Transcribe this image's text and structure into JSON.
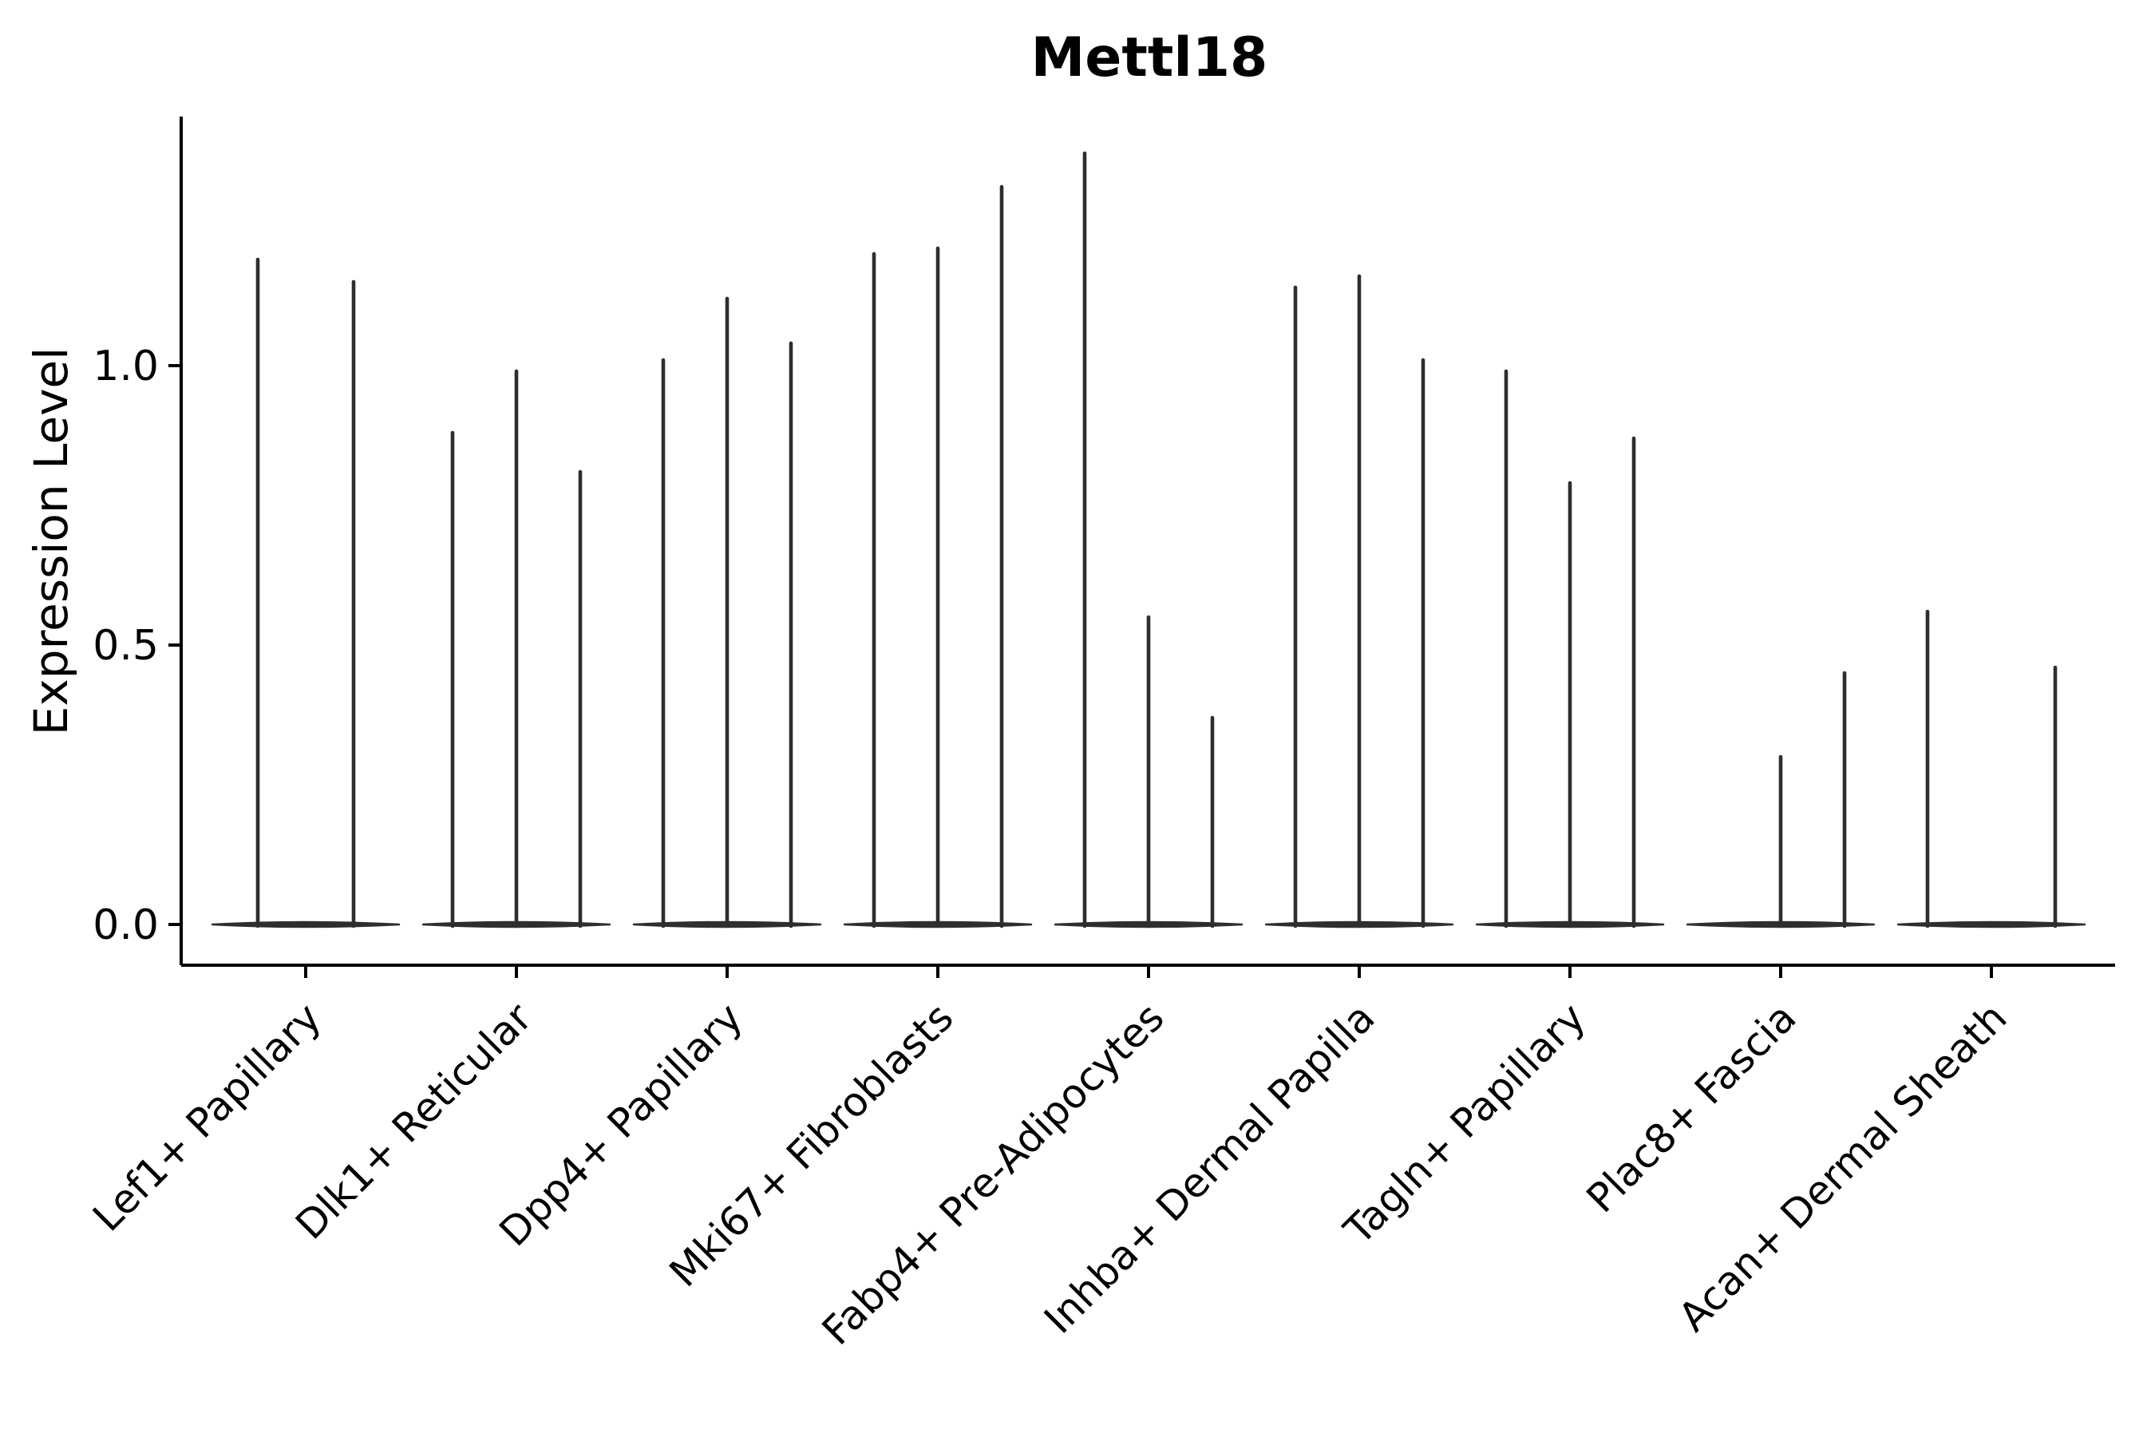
{
  "figure": {
    "title": "Mettl18",
    "background_color": "#ffffff",
    "ink_color": "#000000",
    "violin_color": "#2e2e2e"
  },
  "chart_data": {
    "type": "violin",
    "title": "Mettl18",
    "xlabel": "",
    "ylabel": "Expression Level",
    "ylim": [
      -0.07,
      1.45
    ],
    "ytick_labels": [
      "0.0",
      "0.5",
      "1.0"
    ],
    "ytick_values": [
      0.0,
      0.5,
      1.0
    ],
    "grid": false,
    "legend": "none",
    "x_rotation_deg": 45,
    "categories": [
      "Lef1+ Papillary",
      "Dlk1+ Reticular",
      "Dpp4+ Papillary",
      "Mki67+ Fibroblasts",
      "Fabp4+ Pre-Adipocytes",
      "Inhba+ Dermal Papilla",
      "Tagln+ Papillary",
      "Plac8+ Fascia",
      "Acan+ Dermal Sheath"
    ],
    "description": "Violin plot of Mettl18 expression; each category holds 2-3 thin spike-shaped violins (most cells at 0, spike marks maximum expression). peak = top of each violin spike in Expression Level units; peak 0 means a flat zero-only violin body with no spike.",
    "groups": [
      {
        "category": "Lef1+ Papillary",
        "violins": [
          {
            "offset": -60,
            "peak": 1.19
          },
          {
            "offset": 60,
            "peak": 1.15
          }
        ]
      },
      {
        "category": "Dlk1+ Reticular",
        "violins": [
          {
            "offset": -80,
            "peak": 0.88
          },
          {
            "offset": 0,
            "peak": 0.99
          },
          {
            "offset": 80,
            "peak": 0.81
          }
        ]
      },
      {
        "category": "Dpp4+ Papillary",
        "violins": [
          {
            "offset": -80,
            "peak": 1.01
          },
          {
            "offset": 0,
            "peak": 1.12
          },
          {
            "offset": 80,
            "peak": 1.04
          }
        ]
      },
      {
        "category": "Mki67+ Fibroblasts",
        "violins": [
          {
            "offset": -80,
            "peak": 1.2
          },
          {
            "offset": 0,
            "peak": 1.21
          },
          {
            "offset": 80,
            "peak": 1.32
          }
        ]
      },
      {
        "category": "Fabp4+ Pre-Adipocytes",
        "violins": [
          {
            "offset": -80,
            "peak": 1.38
          },
          {
            "offset": 0,
            "peak": 0.55
          },
          {
            "offset": 80,
            "peak": 0.37
          }
        ]
      },
      {
        "category": "Inhba+ Dermal Papilla",
        "violins": [
          {
            "offset": -80,
            "peak": 1.14
          },
          {
            "offset": 0,
            "peak": 1.16
          },
          {
            "offset": 80,
            "peak": 1.01
          }
        ]
      },
      {
        "category": "Tagln+ Papillary",
        "violins": [
          {
            "offset": -80,
            "peak": 0.99
          },
          {
            "offset": 0,
            "peak": 0.79
          },
          {
            "offset": 80,
            "peak": 0.87
          }
        ]
      },
      {
        "category": "Plac8+ Fascia",
        "violins": [
          {
            "offset": -80,
            "peak": 0.0
          },
          {
            "offset": 0,
            "peak": 0.3
          },
          {
            "offset": 80,
            "peak": 0.45
          }
        ]
      },
      {
        "category": "Acan+ Dermal Sheath",
        "violins": [
          {
            "offset": -80,
            "peak": 0.56
          },
          {
            "offset": 0,
            "peak": 0.0
          },
          {
            "offset": 80,
            "peak": 0.46
          }
        ]
      }
    ]
  }
}
